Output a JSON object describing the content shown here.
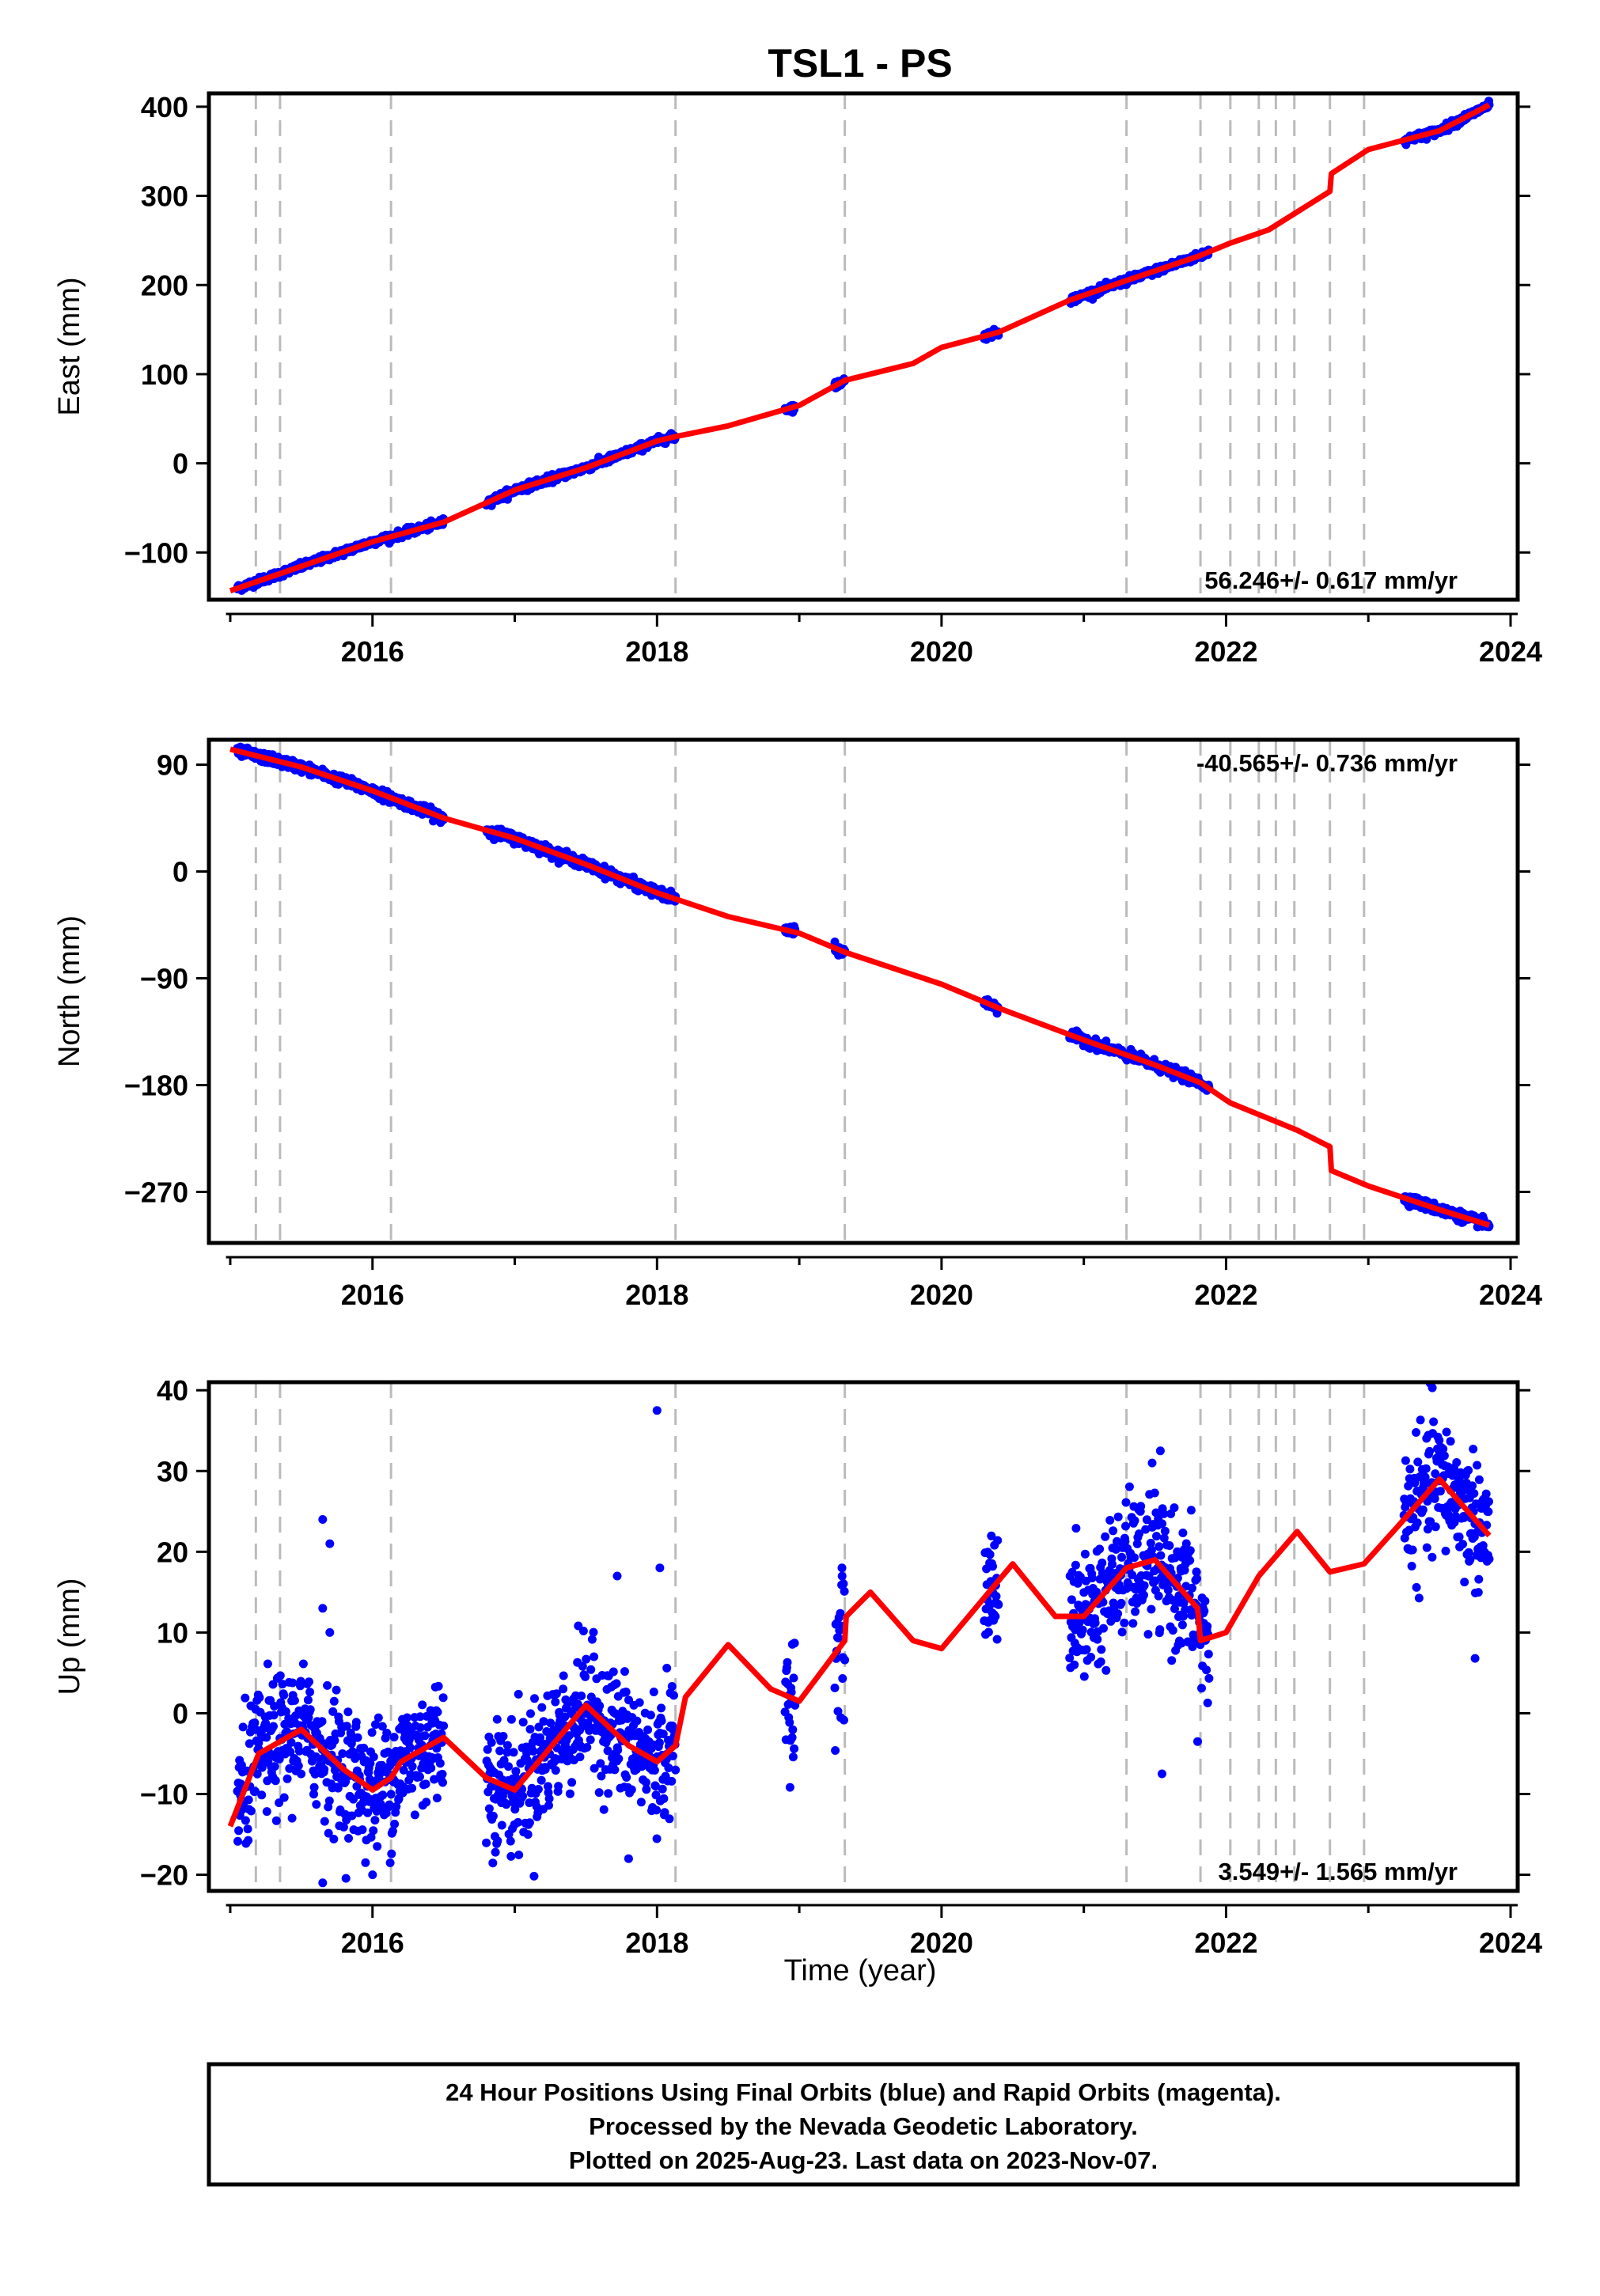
{
  "chart_data": {
    "type": "scatter",
    "title": "TSL1 - PS",
    "xlabel": "Time (year)",
    "xlim": [
      2014.85,
      2024.05
    ],
    "x_ticks": [
      2016,
      2018,
      2020,
      2022,
      2024
    ],
    "x_tick_labels": [
      "2016",
      "2018",
      "2020",
      "2022",
      "2024"
    ],
    "vertical_dashed_lines_x": [
      2015.18,
      2015.35,
      2016.13,
      2018.13,
      2019.32,
      2021.3,
      2021.82,
      2022.03,
      2022.23,
      2022.35,
      2022.48,
      2022.73,
      2022.97
    ],
    "series_colors": {
      "final_orbits": "#0000ff",
      "model_fit": "#ff0000",
      "dashed_lines": "#bbbbbb"
    },
    "panels": [
      {
        "name": "east",
        "ylabel": "East (mm)",
        "ylim": [
          -153,
          415
        ],
        "y_ticks": [
          -100,
          0,
          100,
          200,
          300,
          400
        ],
        "y_tick_labels": [
          "−100",
          "0",
          "100",
          "200",
          "300",
          "400"
        ],
        "rate_text": "56.246+/- 0.617 mm/yr",
        "rate_position": "bottom-right",
        "data_segments": [
          [
            2015.05,
            2016.5
          ],
          [
            2016.8,
            2018.13
          ],
          [
            2018.9,
            2018.97
          ],
          [
            2019.25,
            2019.32
          ],
          [
            2020.3,
            2020.4
          ],
          [
            2020.9,
            2021.88
          ],
          [
            2023.25,
            2023.85
          ]
        ],
        "scatter_noise_mm": 2.0,
        "trend": {
          "t0": 2015.0,
          "y0": -143,
          "rate": 60.3
        },
        "seasonal": {
          "amp": 0,
          "phase": 0
        },
        "offsets": [
          [
            2018.13,
            -2
          ],
          [
            2022.03,
            4
          ],
          [
            2022.35,
            4
          ],
          [
            2022.48,
            5
          ],
          [
            2022.73,
            13
          ]
        ],
        "fit_points": [
          [
            2015.0,
            -143
          ],
          [
            2016.0,
            -88
          ],
          [
            2016.5,
            -66
          ],
          [
            2017.0,
            -30
          ],
          [
            2017.5,
            -5
          ],
          [
            2018.0,
            25
          ],
          [
            2018.13,
            30
          ],
          [
            2018.5,
            42
          ],
          [
            2019.0,
            65
          ],
          [
            2019.32,
            93
          ],
          [
            2019.8,
            112
          ],
          [
            2020.0,
            130
          ],
          [
            2020.4,
            147
          ],
          [
            2020.9,
            183
          ],
          [
            2021.3,
            205
          ],
          [
            2021.8,
            232
          ],
          [
            2022.03,
            247
          ],
          [
            2022.3,
            262
          ],
          [
            2022.5,
            282
          ],
          [
            2022.73,
            305
          ],
          [
            2022.74,
            325
          ],
          [
            2023.0,
            352
          ],
          [
            2023.5,
            373
          ],
          [
            2023.85,
            402
          ]
        ]
      },
      {
        "name": "north",
        "ylabel": "North (mm)",
        "ylim": [
          -313,
          111
        ],
        "y_ticks": [
          -270,
          -180,
          -90,
          0,
          90
        ],
        "y_tick_labels": [
          "−270",
          "−180",
          "−90",
          "0",
          "90"
        ],
        "rate_text": "-40.565+/- 0.736 mm/yr",
        "rate_position": "top-right",
        "data_segments": [
          [
            2015.05,
            2016.5
          ],
          [
            2016.8,
            2018.13
          ],
          [
            2018.9,
            2018.97
          ],
          [
            2019.25,
            2019.32
          ],
          [
            2020.3,
            2020.4
          ],
          [
            2020.9,
            2021.88
          ],
          [
            2023.25,
            2023.85
          ]
        ],
        "scatter_noise_mm": 2.0,
        "trend": {
          "t0": 2015.0,
          "y0": 103,
          "rate": -40.7
        },
        "seasonal": {
          "amp": 0,
          "phase": 0
        },
        "offsets": [
          [
            2022.03,
            -4
          ],
          [
            2022.35,
            -4
          ],
          [
            2022.48,
            -5
          ],
          [
            2022.73,
            -13
          ]
        ],
        "fit_points": [
          [
            2015.0,
            103
          ],
          [
            2015.5,
            88
          ],
          [
            2016.0,
            68
          ],
          [
            2016.5,
            45
          ],
          [
            2017.0,
            28
          ],
          [
            2017.5,
            6
          ],
          [
            2018.0,
            -18
          ],
          [
            2018.5,
            -38
          ],
          [
            2019.0,
            -52
          ],
          [
            2019.32,
            -68
          ],
          [
            2020.0,
            -95
          ],
          [
            2020.4,
            -115
          ],
          [
            2021.0,
            -142
          ],
          [
            2021.5,
            -163
          ],
          [
            2021.82,
            -178
          ],
          [
            2022.03,
            -195
          ],
          [
            2022.5,
            -218
          ],
          [
            2022.73,
            -232
          ],
          [
            2022.74,
            -252
          ],
          [
            2023.0,
            -265
          ],
          [
            2023.5,
            -285
          ],
          [
            2023.85,
            -298
          ]
        ]
      },
      {
        "name": "up",
        "ylabel": "Up (mm)",
        "ylim": [
          -22,
          41
        ],
        "y_ticks": [
          -20,
          -10,
          0,
          10,
          20,
          30,
          40
        ],
        "y_tick_labels": [
          "−20",
          "−10",
          "0",
          "10",
          "20",
          "30",
          "40"
        ],
        "rate_text": "3.549+/- 1.565 mm/yr",
        "rate_position": "bottom-right",
        "data_segments": [
          [
            2015.05,
            2016.5
          ],
          [
            2016.8,
            2018.13
          ],
          [
            2018.9,
            2018.97
          ],
          [
            2019.25,
            2019.32
          ],
          [
            2020.3,
            2020.4
          ],
          [
            2020.9,
            2021.88
          ],
          [
            2023.25,
            2023.85
          ]
        ],
        "scatter_noise_mm": 4.0,
        "trend": {
          "t0": 2015.0,
          "y0": -8,
          "rate": 3.6
        },
        "seasonal": {
          "amp": 4.5,
          "phase": 0.2
        },
        "offsets": [],
        "outliers": [
          [
            2015.65,
            24
          ],
          [
            2015.7,
            21
          ],
          [
            2015.65,
            13
          ],
          [
            2015.7,
            10
          ],
          [
            2018.0,
            37.5
          ],
          [
            2018.02,
            18
          ],
          [
            2017.72,
            17
          ],
          [
            2017.8,
            -18
          ],
          [
            2021.48,
            31
          ],
          [
            2021.55,
            -7.5
          ],
          [
            2021.8,
            -3.5
          ],
          [
            2023.45,
            40.3
          ],
          [
            2023.75,
            6.8
          ],
          [
            2016.0,
            -20
          ],
          [
            2015.65,
            -21
          ],
          [
            2018.95,
            -3
          ],
          [
            2019.3,
            18
          ]
        ],
        "fit_points": [
          [
            2015.0,
            -14
          ],
          [
            2015.2,
            -5
          ],
          [
            2015.5,
            -2
          ],
          [
            2015.8,
            -7
          ],
          [
            2016.0,
            -9.5
          ],
          [
            2016.13,
            -8
          ],
          [
            2016.2,
            -6
          ],
          [
            2016.5,
            -3
          ],
          [
            2016.8,
            -8
          ],
          [
            2017.0,
            -9.5
          ],
          [
            2017.5,
            1
          ],
          [
            2017.8,
            -4
          ],
          [
            2018.0,
            -6
          ],
          [
            2018.13,
            -4
          ],
          [
            2018.2,
            2
          ],
          [
            2018.5,
            8.5
          ],
          [
            2018.8,
            3
          ],
          [
            2019.0,
            1.5
          ],
          [
            2019.32,
            9
          ],
          [
            2019.33,
            12
          ],
          [
            2019.5,
            15
          ],
          [
            2019.8,
            9
          ],
          [
            2020.0,
            8
          ],
          [
            2020.5,
            18.5
          ],
          [
            2020.8,
            12
          ],
          [
            2021.0,
            12
          ],
          [
            2021.3,
            18
          ],
          [
            2021.5,
            19
          ],
          [
            2021.8,
            13
          ],
          [
            2021.82,
            9
          ],
          [
            2022.0,
            10
          ],
          [
            2022.23,
            17
          ],
          [
            2022.5,
            22.5
          ],
          [
            2022.73,
            17.5
          ],
          [
            2022.97,
            18.5
          ],
          [
            2023.2,
            23
          ],
          [
            2023.5,
            29
          ],
          [
            2023.85,
            22
          ]
        ]
      }
    ],
    "footer_lines": [
      "24 Hour Positions Using Final Orbits (blue) and Rapid Orbits (magenta).",
      "Processed by the Nevada Geodetic Laboratory.",
      "Plotted on 2025-Aug-23. Last data on 2023-Nov-07."
    ]
  }
}
